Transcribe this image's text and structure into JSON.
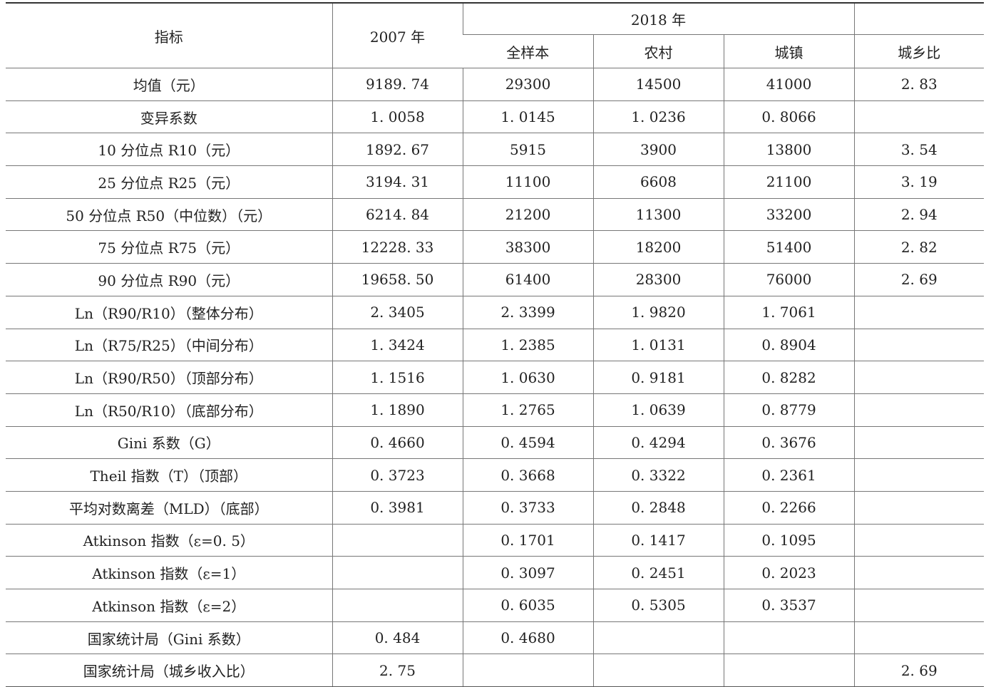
{
  "header": {
    "indicator": "指标",
    "year2007": "2007 年",
    "year2018": "2018 年",
    "full_sample": "全样本",
    "rural": "农村",
    "urban": "城镇",
    "urban_rural_ratio": "城乡比"
  },
  "rows": [
    [
      "均值（元）",
      "9189. 74",
      "29300",
      "14500",
      "41000",
      "2. 83"
    ],
    [
      "变异系数",
      "1. 0058",
      "1. 0145",
      "1. 0236",
      "0. 8066",
      ""
    ],
    [
      "10 分位点 R10（元）",
      "1892. 67",
      "5915",
      "3900",
      "13800",
      "3. 54"
    ],
    [
      "25 分位点 R25（元）",
      "3194. 31",
      "11100",
      "6608",
      "21100",
      "3. 19"
    ],
    [
      "50 分位点 R50（中位数）（元）",
      "6214. 84",
      "21200",
      "11300",
      "33200",
      "2. 94"
    ],
    [
      "75 分位点 R75（元）",
      "12228. 33",
      "38300",
      "18200",
      "51400",
      "2. 82"
    ],
    [
      "90 分位点 R90（元）",
      "19658. 50",
      "61400",
      "28300",
      "76000",
      "2. 69"
    ],
    [
      "Ln（R90/R10）（整体分布）",
      "2. 3405",
      "2. 3399",
      "1. 9820",
      "1. 7061",
      ""
    ],
    [
      "Ln（R75/R25）（中间分布）",
      "1. 3424",
      "1. 2385",
      "1. 0131",
      "0. 8904",
      ""
    ],
    [
      "Ln（R90/R50）（顶部分布）",
      "1. 1516",
      "1. 0630",
      "0. 9181",
      "0. 8282",
      ""
    ],
    [
      "Ln（R50/R10）（底部分布）",
      "1. 1890",
      "1. 2765",
      "1. 0639",
      "0. 8779",
      ""
    ],
    [
      "Gini 系数（G）",
      "0. 4660",
      "0. 4594",
      "0. 4294",
      "0. 3676",
      ""
    ],
    [
      "Theil 指数（T）（顶部）",
      "0. 3723",
      "0. 3668",
      "0. 3322",
      "0. 2361",
      ""
    ],
    [
      "平均对数离差（MLD）（底部）",
      "0. 3981",
      "0. 3733",
      "0. 2848",
      "0. 2266",
      ""
    ],
    [
      "Atkinson 指数（ε=0. 5）",
      "",
      "0. 1701",
      "0. 1417",
      "0. 1095",
      ""
    ],
    [
      "Atkinson 指数（ε=1）",
      "",
      "0. 3097",
      "0. 2451",
      "0. 2023",
      ""
    ],
    [
      "Atkinson 指数（ε=2）",
      "",
      "0. 6035",
      "0. 5305",
      "0. 3537",
      ""
    ],
    [
      "国家统计局（Gini 系数）",
      "0. 484",
      "0. 4680",
      "",
      "",
      ""
    ],
    [
      "国家统计局（城乡收入比）",
      "2. 75",
      "",
      "",
      "",
      "2. 69"
    ]
  ]
}
